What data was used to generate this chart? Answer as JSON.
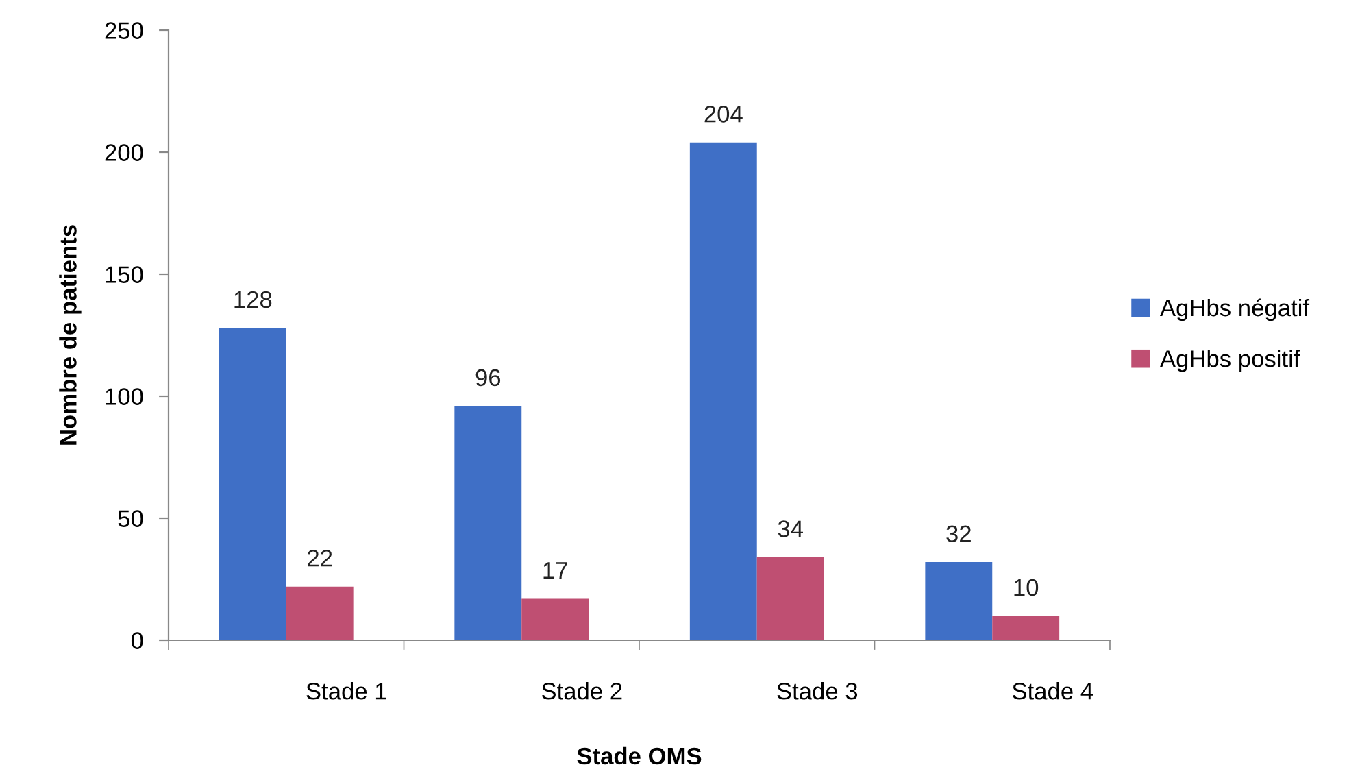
{
  "chart_data": {
    "type": "bar",
    "xlabel": "Stade OMS",
    "ylabel": "Nombre de patients",
    "categories": [
      "Stade 1",
      "Stade 2",
      "Stade 3",
      "Stade 4"
    ],
    "series": [
      {
        "name": "AgHbs négatif",
        "color": "#3f6fc6",
        "values": [
          128,
          96,
          204,
          32
        ]
      },
      {
        "name": "AgHbs positif",
        "color": "#bf4f72",
        "values": [
          22,
          17,
          34,
          10
        ]
      }
    ],
    "ylim": [
      0,
      250
    ],
    "yticks": [
      0,
      50,
      100,
      150,
      200,
      250
    ],
    "grid": false,
    "legend": "right",
    "data_labels": true
  }
}
